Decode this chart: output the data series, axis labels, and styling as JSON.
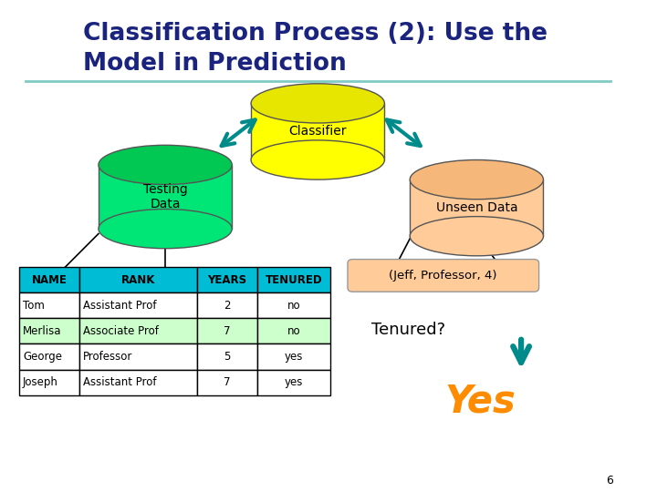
{
  "title_line1": "Classification Process (2): Use the",
  "title_line2": "Model in Prediction",
  "title_color": "#1a237e",
  "title_fontsize": 19,
  "bg_color": "#ffffff",
  "separator_color": "#80cbc4",
  "page_number": "6",
  "classifier_label": "Classifier",
  "classifier_body_color": "#ffff00",
  "classifier_top_color": "#e6e600",
  "testing_label": "Testing\nData",
  "testing_body_color": "#00e676",
  "testing_top_color": "#00c853",
  "unseen_label": "Unseen Data",
  "unseen_body_color": "#ffcc99",
  "unseen_top_color": "#f5b87a",
  "jeff_label": "(Jeff, Professor, 4)",
  "jeff_box_color": "#ffcc99",
  "tenured_label": "Tenured?",
  "yes_label": "Yes",
  "yes_color": "#ff8c00",
  "table_headers": [
    "NAME",
    "RANK",
    "YEARS",
    "TENURED"
  ],
  "table_header_bg": "#00bcd4",
  "table_rows": [
    [
      "Tom",
      "Assistant Prof",
      "2",
      "no"
    ],
    [
      "Merlisa",
      "Associate Prof",
      "7",
      "no"
    ],
    [
      "George",
      "Professor",
      "5",
      "yes"
    ],
    [
      "Joseph",
      "Assistant Prof",
      "7",
      "yes"
    ]
  ],
  "table_row_colors": [
    "#ffffff",
    "#ccffcc",
    "#ffffff",
    "#ffffff"
  ],
  "arrow_color": "#008b8b"
}
